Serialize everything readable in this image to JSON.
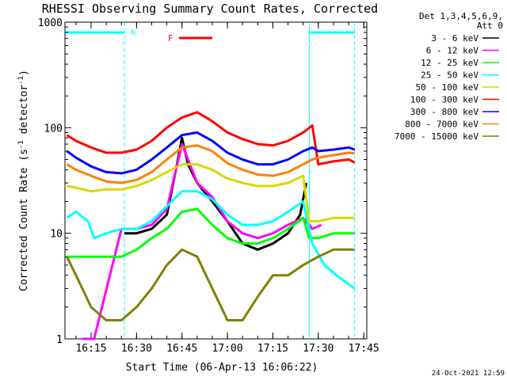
{
  "chart_data": {
    "type": "line",
    "title": "RHESSI Observing Summary Count Rates, Corrected",
    "xlabel": "Start Time (06-Apr-13 16:06:22)",
    "ylabel_parts": [
      "Corrected Count Rate (s",
      "-1",
      " detector",
      "-1",
      ")"
    ],
    "y_scale": "log",
    "ylim": [
      1,
      1000
    ],
    "xlim": [
      "16:06:22",
      "17:46:00"
    ],
    "x_ticks": [
      "16:15",
      "16:30",
      "16:45",
      "17:00",
      "17:15",
      "17:30",
      "17:45"
    ],
    "y_ticks": [
      "1",
      "10",
      "100",
      "1000"
    ],
    "legend_header": [
      "Det 1,3,4,5,6,9,",
      "Att 0"
    ],
    "timestamp": "24-Oct-2021 12:59",
    "night_marker": "N",
    "flare_marker": "F",
    "colors": {
      "night_cyan": "#00ffff",
      "flare_red": "#ff0000"
    },
    "series": [
      {
        "name": "3 - 6 keV",
        "color": "#000000",
        "x": [
          "16:26",
          "16:30",
          "16:35",
          "16:40",
          "16:43",
          "16:45",
          "16:47",
          "16:50",
          "16:55",
          "17:00",
          "17:05",
          "17:10",
          "17:15",
          "17:20",
          "17:24",
          "17:26"
        ],
        "y": [
          10,
          10,
          11,
          15,
          40,
          80,
          45,
          30,
          20,
          13,
          8,
          7,
          8,
          10,
          15,
          30
        ]
      },
      {
        "name": "6 - 12 keV",
        "color": "#ff00ff",
        "x": [
          "16:12",
          "16:16",
          "16:25",
          "16:30",
          "16:35",
          "16:40",
          "16:45",
          "16:47",
          "16:50",
          "16:55",
          "17:00",
          "17:05",
          "17:10",
          "17:15",
          "17:20",
          "17:25",
          "17:28",
          "17:31"
        ],
        "y": [
          1,
          1,
          11,
          11,
          12,
          17,
          70,
          50,
          30,
          22,
          13,
          10,
          9,
          10,
          12,
          14,
          11,
          12
        ]
      },
      {
        "name": "12 - 25 keV",
        "color": "#00ff00",
        "x": [
          "16:07",
          "16:10",
          "16:15",
          "16:20",
          "16:25",
          "16:30",
          "16:35",
          "16:40",
          "16:45",
          "16:50",
          "16:55",
          "17:00",
          "17:05",
          "17:10",
          "17:15",
          "17:20",
          "17:25",
          "17:27",
          "17:30",
          "17:35",
          "17:40",
          "17:42"
        ],
        "y": [
          6,
          6,
          6,
          6,
          6,
          7,
          9,
          11,
          16,
          17,
          12,
          9,
          8,
          8,
          9,
          11,
          14,
          9,
          9,
          10,
          10,
          10
        ]
      },
      {
        "name": "25 - 50 keV",
        "color": "#00ffff",
        "x": [
          "16:07",
          "16:10",
          "16:14",
          "16:16",
          "16:20",
          "16:25",
          "16:30",
          "16:35",
          "16:40",
          "16:45",
          "16:50",
          "16:55",
          "17:00",
          "17:05",
          "17:10",
          "17:15",
          "17:20",
          "17:25",
          "17:28",
          "17:32",
          "17:36",
          "17:42"
        ],
        "y": [
          14,
          16,
          13,
          9,
          10,
          11,
          11,
          13,
          18,
          25,
          25,
          21,
          15,
          12,
          12,
          13,
          16,
          20,
          8,
          5,
          4,
          3
        ]
      },
      {
        "name": "50 - 100 keV",
        "color": "#d8d800",
        "x": [
          "16:07",
          "16:10",
          "16:15",
          "16:20",
          "16:25",
          "16:30",
          "16:35",
          "16:40",
          "16:45",
          "16:50",
          "16:55",
          "17:00",
          "17:05",
          "17:10",
          "17:15",
          "17:20",
          "17:25",
          "17:27",
          "17:30",
          "17:35",
          "17:40",
          "17:42"
        ],
        "y": [
          28,
          27,
          25,
          26,
          26,
          28,
          32,
          38,
          45,
          45,
          40,
          33,
          30,
          28,
          28,
          30,
          35,
          13,
          13,
          14,
          14,
          14
        ]
      },
      {
        "name": "100 - 300 keV",
        "color": "#ff0000",
        "x": [
          "16:07",
          "16:10",
          "16:15",
          "16:20",
          "16:25",
          "16:30",
          "16:35",
          "16:40",
          "16:45",
          "16:50",
          "16:55",
          "17:00",
          "17:05",
          "17:10",
          "17:15",
          "17:20",
          "17:25",
          "17:28",
          "17:30",
          "17:35",
          "17:40",
          "17:42"
        ],
        "y": [
          85,
          75,
          65,
          58,
          58,
          62,
          75,
          100,
          125,
          140,
          115,
          90,
          78,
          70,
          68,
          75,
          90,
          105,
          45,
          48,
          50,
          47
        ]
      },
      {
        "name": "300 - 800 keV",
        "color": "#0000ff",
        "x": [
          "16:07",
          "16:10",
          "16:15",
          "16:20",
          "16:25",
          "16:30",
          "16:35",
          "16:40",
          "16:45",
          "16:50",
          "16:55",
          "17:00",
          "17:05",
          "17:10",
          "17:15",
          "17:20",
          "17:25",
          "17:28",
          "17:30",
          "17:35",
          "17:40",
          "17:42"
        ],
        "y": [
          60,
          52,
          43,
          38,
          37,
          40,
          50,
          65,
          85,
          90,
          75,
          58,
          50,
          45,
          45,
          50,
          60,
          65,
          60,
          62,
          65,
          62
        ]
      },
      {
        "name": "800 - 7000 keV",
        "color": "#ff8000",
        "x": [
          "16:07",
          "16:10",
          "16:15",
          "16:20",
          "16:25",
          "16:30",
          "16:35",
          "16:40",
          "16:45",
          "16:50",
          "16:55",
          "17:00",
          "17:05",
          "17:10",
          "17:15",
          "17:20",
          "17:25",
          "17:28",
          "17:30",
          "17:35",
          "17:40",
          "17:42"
        ],
        "y": [
          45,
          40,
          35,
          31,
          30,
          32,
          38,
          50,
          65,
          68,
          60,
          46,
          40,
          36,
          35,
          38,
          45,
          50,
          52,
          55,
          58,
          57
        ]
      },
      {
        "name": "7000 - 15000 keV",
        "color": "#808000",
        "x": [
          "16:07",
          "16:10",
          "16:15",
          "16:20",
          "16:25",
          "16:30",
          "16:35",
          "16:40",
          "16:45",
          "16:50",
          "16:55",
          "17:00",
          "17:05",
          "17:10",
          "17:15",
          "17:20",
          "17:25",
          "17:30",
          "17:35",
          "17:40",
          "17:42"
        ],
        "y": [
          6,
          4,
          2,
          1.5,
          1.5,
          2,
          3,
          5,
          7,
          6,
          3,
          1.5,
          1.5,
          2.5,
          4,
          4,
          5,
          6,
          7,
          7,
          7
        ]
      }
    ],
    "night_intervals": [
      [
        "16:06:22",
        "16:26"
      ],
      [
        "17:27",
        "17:42"
      ]
    ],
    "flare_interval": [
      "16:44",
      "16:55"
    ]
  }
}
